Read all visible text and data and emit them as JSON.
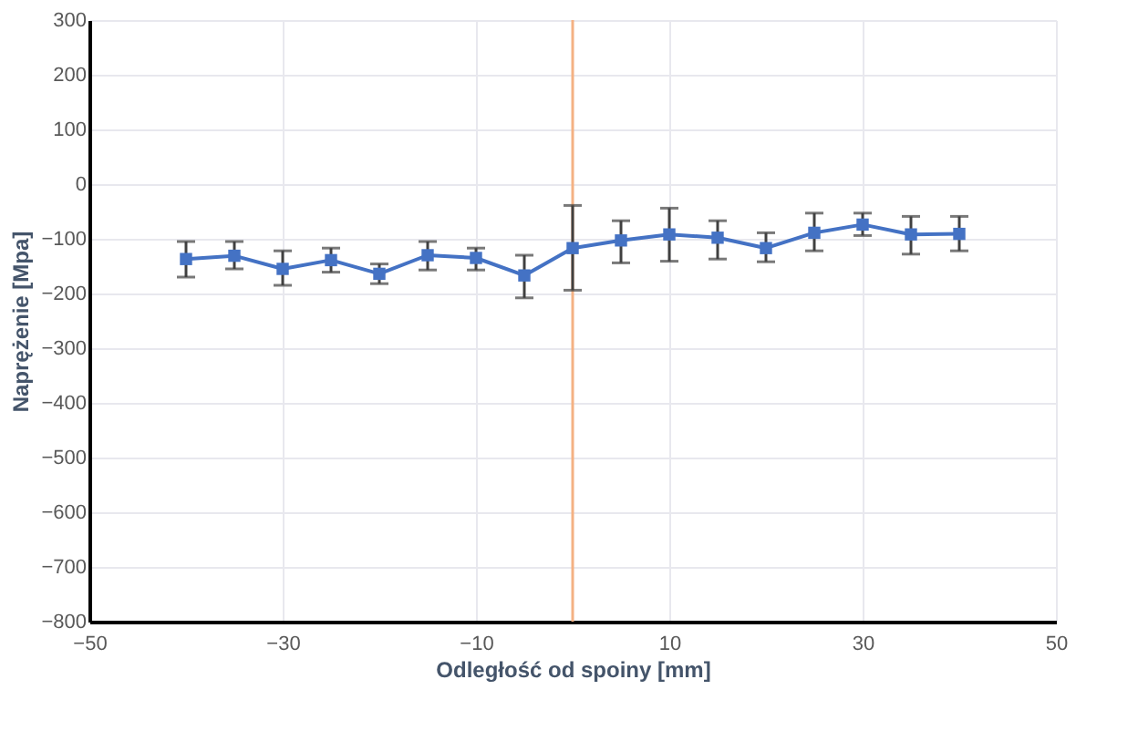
{
  "chart_data": {
    "type": "line",
    "xlabel": "Odległość od spoiny [mm]",
    "ylabel": "Naprężenie [Mpa]",
    "x": [
      -40,
      -35,
      -30,
      -25,
      -20,
      -15,
      -10,
      -5,
      0,
      5,
      10,
      15,
      20,
      25,
      30,
      35,
      40
    ],
    "series": [
      {
        "color": "#4472c4",
        "values": [
          -137,
          -131,
          -155,
          -139,
          -164,
          -130,
          -135,
          -167,
          -117,
          -103,
          -92,
          -98,
          -117,
          -89,
          -74,
          -92,
          -91
        ],
        "errors": [
          [
            -170,
            -105
          ],
          [
            -155,
            -105
          ],
          [
            -185,
            -122
          ],
          [
            -161,
            -117
          ],
          [
            -182,
            -146
          ],
          [
            -157,
            -105
          ],
          [
            -157,
            -117
          ],
          [
            -208,
            -130
          ],
          [
            -194,
            -39
          ],
          [
            -144,
            -67
          ],
          [
            -141,
            -44
          ],
          [
            -137,
            -67
          ],
          [
            -142,
            -89
          ],
          [
            -122,
            -53
          ],
          [
            -94,
            -53
          ],
          [
            -128,
            -59
          ],
          [
            -122,
            -59
          ]
        ]
      }
    ],
    "xlim": [
      -50,
      50
    ],
    "xticks": [
      -50,
      -30,
      -10,
      10,
      30,
      50
    ],
    "ylim": [
      -800,
      300
    ],
    "yticks": [
      -800,
      -700,
      -600,
      -500,
      -400,
      -300,
      -200,
      -100,
      0,
      100,
      200,
      300
    ],
    "ref_lines": [
      {
        "axis": "x",
        "value": 0,
        "color": "#f4b183"
      }
    ],
    "grid": true,
    "marker": "square",
    "line_style": "solid"
  }
}
